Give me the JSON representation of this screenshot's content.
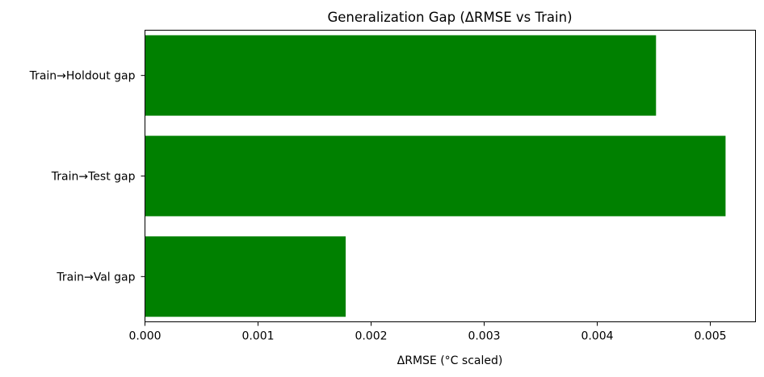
{
  "chart_data": {
    "type": "bar",
    "orientation": "horizontal",
    "title": "Generalization Gap (ΔRMSE vs Train)",
    "xlabel": "ΔRMSE (°C scaled)",
    "ylabel": "",
    "categories": [
      "Train→Val gap",
      "Train→Test gap",
      "Train→Holdout gap"
    ],
    "values": [
      0.001775,
      0.005135,
      0.00452
    ],
    "xlim": [
      0,
      0.0054
    ],
    "xticks": [
      0.0,
      0.001,
      0.002,
      0.003,
      0.004,
      0.005
    ],
    "xtick_labels": [
      "0.000",
      "0.001",
      "0.002",
      "0.003",
      "0.004",
      "0.005"
    ],
    "grid": false,
    "bar_color": "#008000"
  }
}
